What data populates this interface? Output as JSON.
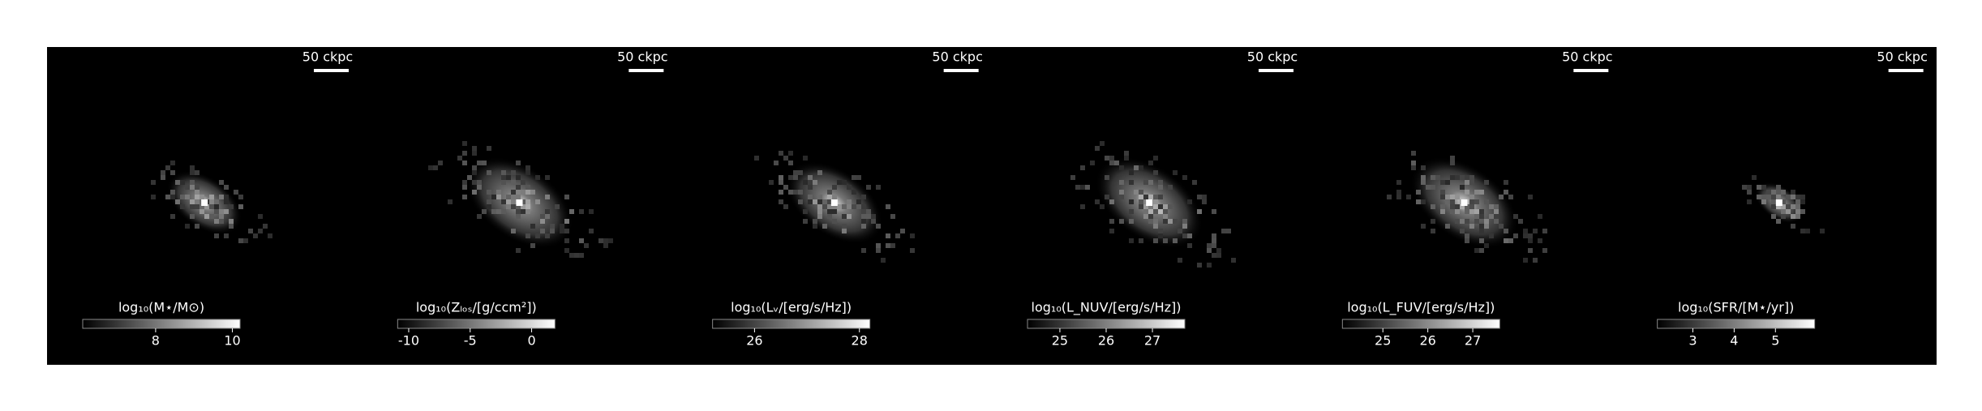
{
  "chart_data": [
    {
      "type": "image",
      "scale_label": "50 ckpc",
      "colorbar_label": "log₁₀(M⋆/M⊙)",
      "clim": [
        6.1,
        10.2
      ],
      "cticks": [
        8,
        10
      ]
    },
    {
      "type": "image",
      "scale_label": "50 ckpc",
      "colorbar_label": "log₁₀(Zₗₒₛ/[g/ccm²])",
      "clim": [
        -10.9,
        1.9
      ],
      "cticks": [
        -10,
        -5,
        0
      ]
    },
    {
      "type": "image",
      "scale_label": "50 ckpc",
      "colorbar_label": "log₁₀(Lᵥ/[erg/s/Hz])",
      "clim": [
        25.2,
        28.2
      ],
      "cticks": [
        26,
        28
      ]
    },
    {
      "type": "image",
      "scale_label": "50 ckpc",
      "colorbar_label": "log₁₀(L_NUV/[erg/s/Hz])",
      "clim": [
        24.3,
        27.7
      ],
      "cticks": [
        25,
        26,
        27
      ]
    },
    {
      "type": "image",
      "scale_label": "50 ckpc",
      "colorbar_label": "log₁₀(L_FUV/[erg/s/Hz])",
      "clim": [
        24.1,
        27.6
      ],
      "cticks": [
        25,
        26,
        27
      ]
    },
    {
      "type": "image",
      "scale_label": "50 ckpc",
      "colorbar_label": "log₁₀(SFR/[M⋆/yr])",
      "clim": [
        2.14,
        5.95
      ],
      "cticks": [
        3,
        4,
        5
      ]
    }
  ]
}
